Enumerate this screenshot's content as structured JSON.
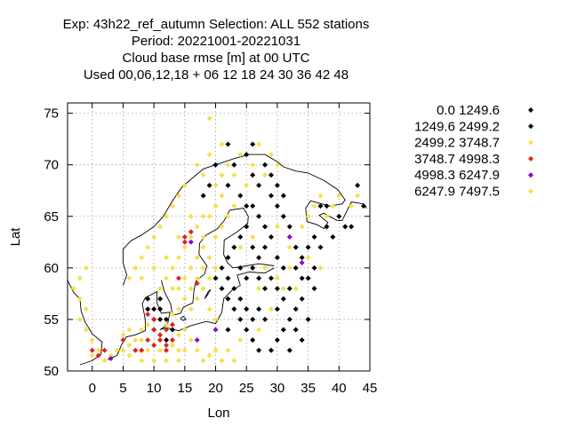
{
  "chart_data": {
    "type": "scatter",
    "title_lines": [
      "Exp: 43h22_ref_autumn   Selection: ALL    552 stations",
      "Period: 20221001-20221031",
      "Cloud base rmse [m] at  00 UTC",
      "Used  00,06,12,18  + 06 12 18 24 30 36 42 48"
    ],
    "xlabel": "Lon",
    "ylabel": "Lat",
    "xlim": [
      -4,
      45
    ],
    "ylim": [
      50,
      76
    ],
    "xticks": [
      0,
      5,
      10,
      15,
      20,
      25,
      30,
      35,
      40,
      45
    ],
    "yticks": [
      50,
      55,
      60,
      65,
      70,
      75
    ],
    "grid": true,
    "legend_position": "right",
    "series": [
      {
        "name": "0.0 1249.6",
        "color": "#000000",
        "points": [
          [
            22,
            68
          ],
          [
            23,
            70
          ],
          [
            24,
            67
          ],
          [
            25,
            66
          ],
          [
            26,
            69
          ],
          [
            27,
            68
          ],
          [
            28,
            70
          ],
          [
            26,
            66
          ],
          [
            27,
            65
          ],
          [
            29,
            67
          ],
          [
            28,
            64
          ],
          [
            30,
            66
          ],
          [
            31,
            65
          ],
          [
            25,
            64
          ],
          [
            24,
            63
          ],
          [
            26,
            62
          ],
          [
            27,
            61
          ],
          [
            28,
            62
          ],
          [
            29,
            63
          ],
          [
            30,
            61
          ],
          [
            23,
            62
          ],
          [
            22,
            61
          ],
          [
            24,
            60
          ],
          [
            25,
            59
          ],
          [
            26,
            60
          ],
          [
            27,
            59
          ],
          [
            28,
            58
          ],
          [
            29,
            59
          ],
          [
            30,
            58
          ],
          [
            31,
            57
          ],
          [
            32,
            58
          ],
          [
            33,
            56
          ],
          [
            34,
            57
          ],
          [
            35,
            55
          ],
          [
            32,
            55
          ],
          [
            33,
            54
          ],
          [
            31,
            54
          ],
          [
            30,
            53
          ],
          [
            29,
            52
          ],
          [
            32,
            52
          ],
          [
            34,
            53
          ],
          [
            28,
            55
          ],
          [
            27,
            56
          ],
          [
            26,
            55
          ],
          [
            25,
            56
          ],
          [
            24,
            57
          ],
          [
            23,
            56
          ],
          [
            22,
            57
          ],
          [
            21,
            58
          ],
          [
            20,
            59
          ],
          [
            21,
            60
          ],
          [
            22,
            59
          ],
          [
            23,
            58
          ],
          [
            24,
            55
          ],
          [
            25,
            54
          ],
          [
            26,
            53
          ],
          [
            27,
            52
          ],
          [
            22,
            54
          ],
          [
            30,
            56
          ],
          [
            31,
            60
          ],
          [
            33,
            60
          ],
          [
            34,
            61
          ],
          [
            35,
            62
          ],
          [
            36,
            63
          ],
          [
            38,
            64
          ],
          [
            40,
            65
          ],
          [
            41,
            64
          ],
          [
            39,
            63
          ],
          [
            37,
            62
          ],
          [
            36,
            60
          ],
          [
            35,
            59
          ],
          [
            36,
            58
          ],
          [
            34,
            59
          ],
          [
            33,
            62
          ],
          [
            32,
            64
          ],
          [
            31,
            67
          ],
          [
            30,
            68
          ],
          [
            29,
            69
          ],
          [
            25,
            71
          ],
          [
            26,
            72
          ],
          [
            22,
            72
          ],
          [
            20,
            70
          ],
          [
            19,
            68
          ],
          [
            18,
            67
          ],
          [
            10,
            55
          ],
          [
            11,
            55
          ],
          [
            10,
            56
          ],
          [
            11,
            56
          ],
          [
            9,
            56
          ],
          [
            12,
            55
          ],
          [
            10,
            54
          ],
          [
            12,
            53
          ],
          [
            13,
            54
          ],
          [
            11,
            57
          ],
          [
            9,
            57
          ],
          [
            44,
            66
          ],
          [
            43,
            68
          ],
          [
            42,
            64
          ],
          [
            37,
            66
          ],
          [
            38,
            66
          ]
        ]
      },
      {
        "name": "1249.6 2499.2",
        "color": "#000000",
        "points": []
      },
      {
        "name": "2499.2 3748.7",
        "color": "#f5e04a",
        "points": [
          [
            19,
            74.5
          ],
          [
            -3,
            58
          ],
          [
            -2,
            59
          ],
          [
            -1,
            60
          ],
          [
            -2,
            57
          ],
          [
            -1,
            56
          ],
          [
            -2,
            55
          ],
          [
            -1,
            54
          ],
          [
            0,
            53
          ],
          [
            1,
            52
          ],
          [
            0,
            51.5
          ],
          [
            2,
            51
          ],
          [
            3,
            51.5
          ],
          [
            4,
            52
          ],
          [
            5,
            52
          ],
          [
            6,
            52.5
          ],
          [
            7,
            53
          ],
          [
            8,
            53
          ],
          [
            9,
            52
          ],
          [
            10,
            52.5
          ],
          [
            11,
            52
          ],
          [
            12,
            52
          ],
          [
            13,
            52.5
          ],
          [
            14,
            52
          ],
          [
            15,
            52
          ],
          [
            8,
            51
          ],
          [
            6,
            51.5
          ],
          [
            10,
            51
          ],
          [
            12,
            51
          ],
          [
            14,
            51
          ],
          [
            5,
            53.5
          ],
          [
            6,
            54
          ],
          [
            8,
            54
          ],
          [
            9,
            54.5
          ],
          [
            13,
            53
          ],
          [
            14,
            53.5
          ],
          [
            15,
            54
          ],
          [
            16,
            53
          ],
          [
            17,
            52
          ],
          [
            18,
            51
          ],
          [
            19,
            51.5
          ],
          [
            20,
            52
          ],
          [
            21,
            51
          ],
          [
            22,
            52
          ],
          [
            23,
            51
          ],
          [
            12,
            54.5
          ],
          [
            13,
            55.5
          ],
          [
            14,
            56
          ],
          [
            15,
            57
          ],
          [
            16,
            58
          ],
          [
            17,
            59
          ],
          [
            15,
            59
          ],
          [
            16,
            60
          ],
          [
            17,
            61
          ],
          [
            18,
            62
          ],
          [
            16,
            63
          ],
          [
            15,
            62
          ],
          [
            14,
            61
          ],
          [
            13,
            60
          ],
          [
            12,
            59
          ],
          [
            11,
            58
          ],
          [
            13,
            58
          ],
          [
            14,
            58
          ],
          [
            16,
            56
          ],
          [
            17,
            57
          ],
          [
            18,
            58
          ],
          [
            19,
            59
          ],
          [
            20,
            60
          ],
          [
            19,
            61
          ],
          [
            20,
            63
          ],
          [
            21,
            64
          ],
          [
            22,
            65
          ],
          [
            23,
            66
          ],
          [
            21,
            67
          ],
          [
            20,
            66
          ],
          [
            18,
            65
          ],
          [
            17,
            64
          ],
          [
            19,
            65
          ],
          [
            20,
            68
          ],
          [
            21,
            69
          ],
          [
            22,
            70
          ],
          [
            24,
            71
          ],
          [
            27,
            72
          ],
          [
            29,
            71
          ],
          [
            30,
            70
          ],
          [
            28,
            69
          ],
          [
            26,
            70
          ],
          [
            25,
            68
          ],
          [
            23,
            69
          ],
          [
            21,
            72
          ],
          [
            19,
            71
          ],
          [
            17,
            70
          ],
          [
            15,
            68
          ],
          [
            14,
            67
          ],
          [
            13,
            66
          ],
          [
            12,
            65
          ],
          [
            11,
            64
          ],
          [
            10,
            63
          ],
          [
            9,
            62
          ],
          [
            8,
            61
          ],
          [
            7,
            60
          ],
          [
            6,
            59
          ],
          [
            8,
            59
          ],
          [
            10,
            60
          ],
          [
            12,
            61
          ],
          [
            14,
            63
          ],
          [
            16,
            65
          ],
          [
            18,
            69
          ],
          [
            30,
            64
          ],
          [
            32,
            62
          ],
          [
            34,
            64
          ],
          [
            35,
            65
          ],
          [
            36,
            66
          ],
          [
            37,
            67
          ],
          [
            38,
            65
          ],
          [
            39,
            66
          ],
          [
            40,
            67
          ],
          [
            42,
            66
          ],
          [
            43,
            67
          ],
          [
            31,
            58
          ],
          [
            29,
            56
          ],
          [
            27,
            58
          ],
          [
            24,
            62
          ],
          [
            26,
            63
          ],
          [
            28,
            60
          ],
          [
            30,
            59
          ],
          [
            32,
            60
          ],
          [
            33,
            58
          ],
          [
            35,
            61
          ],
          [
            37,
            60
          ],
          [
            27,
            54
          ],
          [
            24,
            53
          ],
          [
            20,
            55
          ],
          [
            19,
            56
          ],
          [
            18,
            60
          ],
          [
            18,
            63
          ]
        ]
      },
      {
        "name": "3748.7 4998.3",
        "color": "#e02020",
        "points": [
          [
            15,
            63
          ],
          [
            16,
            63.5
          ],
          [
            15,
            62.5
          ],
          [
            14,
            59
          ],
          [
            17,
            58.5
          ],
          [
            10,
            54
          ],
          [
            11,
            53.5
          ],
          [
            12,
            54
          ],
          [
            11,
            53
          ],
          [
            10,
            52.5
          ],
          [
            12,
            52.5
          ],
          [
            9,
            53
          ],
          [
            13,
            53
          ],
          [
            12,
            52
          ],
          [
            0,
            52
          ],
          [
            1,
            51.5
          ],
          [
            2,
            52
          ],
          [
            7,
            52
          ],
          [
            8,
            52
          ],
          [
            10,
            55
          ],
          [
            5,
            53
          ],
          [
            9,
            55.5
          ],
          [
            13,
            54.5
          ]
        ]
      },
      {
        "name": "4998.3 6247.9",
        "color": "#8b00cc",
        "points": [
          [
            16,
            62.5
          ],
          [
            32,
            63
          ],
          [
            34,
            60.5
          ],
          [
            20,
            54
          ],
          [
            17,
            53
          ],
          [
            3,
            51.2
          ]
        ]
      },
      {
        "name": "6247.9 7497.5",
        "color": "#f5e04a",
        "points": []
      }
    ]
  }
}
